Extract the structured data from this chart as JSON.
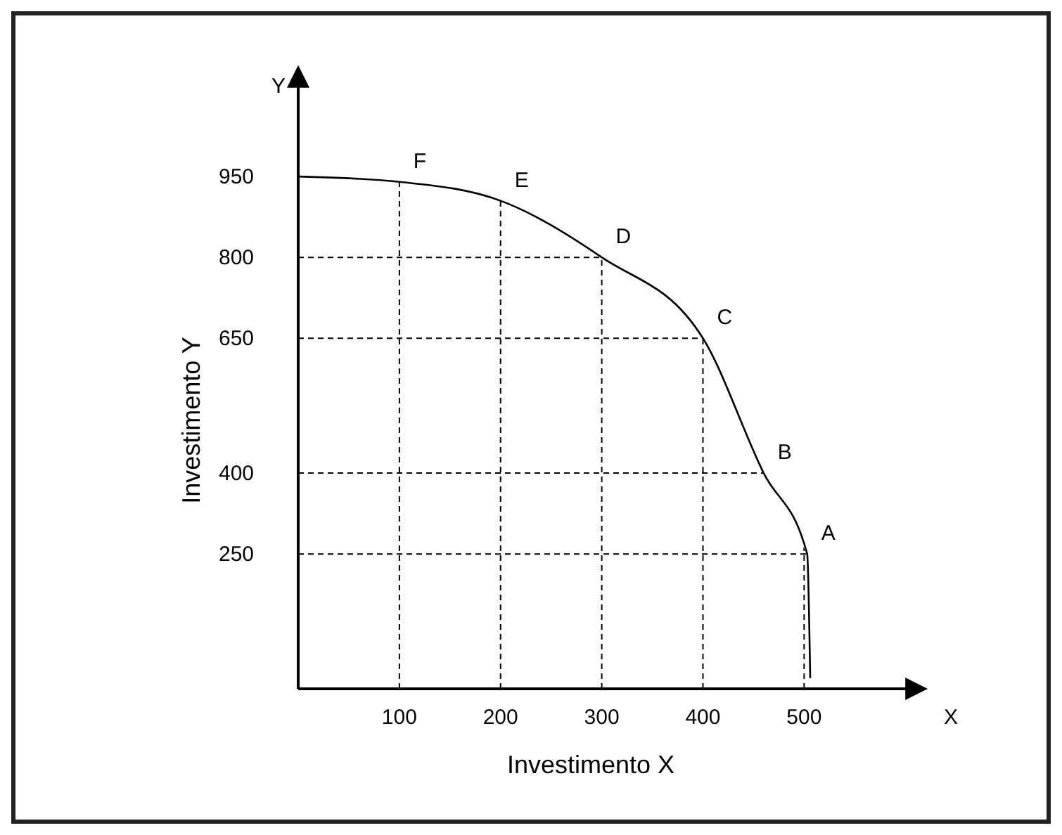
{
  "chart_data": {
    "type": "line",
    "xlabel": "Investimento X",
    "ylabel": "Investimento Y",
    "series": [
      {
        "color": "#000000",
        "x": [
          0,
          100,
          200,
          300,
          400,
          460,
          503,
          506
        ],
        "values": [
          950,
          940,
          905,
          800,
          650,
          400,
          250,
          20
        ]
      }
    ],
    "xlim": [
      0,
      620
    ],
    "ylim": [
      0,
      1100
    ],
    "xticks": [
      100,
      200,
      300,
      400,
      500
    ],
    "yticks": [
      250,
      400,
      650,
      800,
      950
    ],
    "grid": true,
    "marker": "none",
    "line_style": "solid",
    "annotations": [
      "Y",
      "X",
      {
        "text": "A",
        "x": 503,
        "y": 250
      },
      {
        "text": "B",
        "x": 460,
        "y": 400
      },
      {
        "text": "C",
        "x": 400,
        "y": 650
      },
      {
        "text": "D",
        "x": 300,
        "y": 800
      },
      {
        "text": "E",
        "x": 200,
        "y": 905
      },
      {
        "text": "F",
        "x": 100,
        "y": 940
      }
    ]
  }
}
